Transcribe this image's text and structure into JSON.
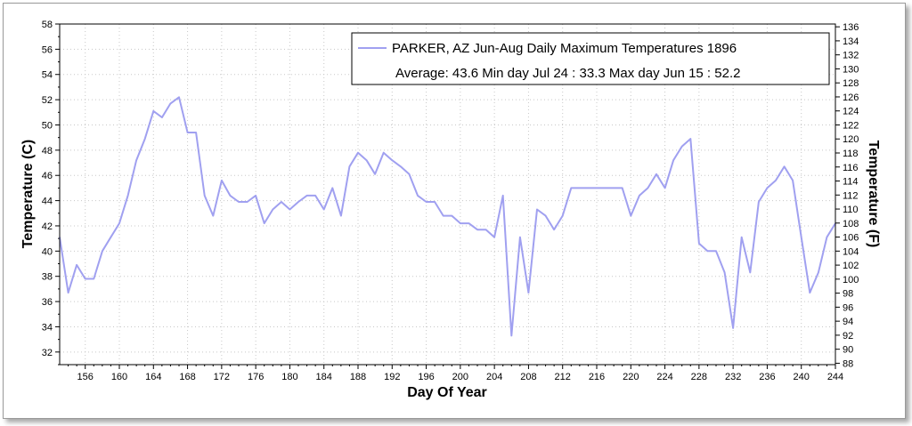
{
  "chart_data": {
    "type": "line",
    "title": "",
    "xlabel": "Day Of Year",
    "ylabel": "Temperature (C)",
    "ylabel_right": "Temperature (F)",
    "xlim": [
      153,
      244
    ],
    "ylim": [
      31,
      58
    ],
    "y2lim": [
      87.8,
      136.4
    ],
    "x_ticks": [
      "156",
      "160",
      "164",
      "168",
      "172",
      "176",
      "180",
      "184",
      "188",
      "192",
      "196",
      "200",
      "204",
      "208",
      "212",
      "216",
      "220",
      "224",
      "228",
      "232",
      "236",
      "240",
      "244"
    ],
    "y_ticks": [
      "32",
      "34",
      "36",
      "38",
      "40",
      "42",
      "44",
      "46",
      "48",
      "50",
      "52",
      "54",
      "56",
      "58"
    ],
    "y2_ticks": [
      "88",
      "90",
      "92",
      "94",
      "96",
      "98",
      "100",
      "102",
      "104",
      "106",
      "108",
      "110",
      "112",
      "114",
      "116",
      "118",
      "120",
      "122",
      "124",
      "126",
      "128",
      "130",
      "132",
      "134",
      "136"
    ],
    "grid": true,
    "legend_position": "top-right",
    "series": [
      {
        "name": "PARKER, AZ  Jun-Aug  Daily Maximum Temperatures 1896",
        "color": "#a0a0f0",
        "x": [
          153,
          154,
          155,
          156,
          157,
          158,
          159,
          160,
          161,
          162,
          163,
          164,
          165,
          166,
          167,
          168,
          169,
          170,
          171,
          172,
          173,
          174,
          175,
          176,
          177,
          178,
          179,
          180,
          181,
          182,
          183,
          184,
          185,
          186,
          187,
          188,
          189,
          190,
          191,
          192,
          193,
          194,
          195,
          196,
          197,
          198,
          199,
          200,
          201,
          202,
          203,
          204,
          205,
          206,
          207,
          208,
          209,
          210,
          211,
          212,
          213,
          214,
          215,
          216,
          217,
          218,
          219,
          220,
          221,
          222,
          223,
          224,
          225,
          226,
          227,
          228,
          229,
          230,
          231,
          232,
          233,
          234,
          235,
          236,
          237,
          238,
          239,
          240,
          241,
          242,
          243,
          244
        ],
        "values": [
          41.1,
          36.7,
          38.9,
          37.8,
          37.8,
          40.0,
          41.1,
          42.2,
          44.4,
          47.2,
          48.9,
          51.1,
          50.6,
          51.7,
          52.2,
          49.4,
          49.4,
          44.4,
          42.8,
          45.6,
          44.4,
          43.9,
          43.9,
          44.4,
          42.2,
          43.3,
          43.9,
          43.3,
          43.9,
          44.4,
          44.4,
          43.3,
          45.0,
          42.8,
          46.7,
          47.8,
          47.2,
          46.1,
          47.8,
          47.2,
          46.7,
          46.1,
          44.4,
          43.9,
          43.9,
          42.8,
          42.8,
          42.2,
          42.2,
          41.7,
          41.7,
          41.1,
          44.4,
          33.3,
          41.1,
          36.7,
          43.3,
          42.8,
          41.7,
          42.8,
          45.0,
          45.0,
          45.0,
          45.0,
          45.0,
          45.0,
          45.0,
          42.8,
          44.4,
          45.0,
          46.1,
          45.0,
          47.2,
          48.3,
          48.9,
          40.6,
          40.0,
          40.0,
          38.3,
          33.9,
          41.1,
          38.3,
          43.9,
          45.0,
          45.6,
          46.7,
          45.6,
          41.1,
          36.7,
          38.3,
          41.1,
          42.2
        ]
      }
    ],
    "legend": {
      "line1": "PARKER, AZ  Jun-Aug  Daily Maximum Temperatures 1896",
      "line2": "Average: 43.6  Min day Jul 24 : 33.3  Max day Jun 15 : 52.2"
    }
  }
}
